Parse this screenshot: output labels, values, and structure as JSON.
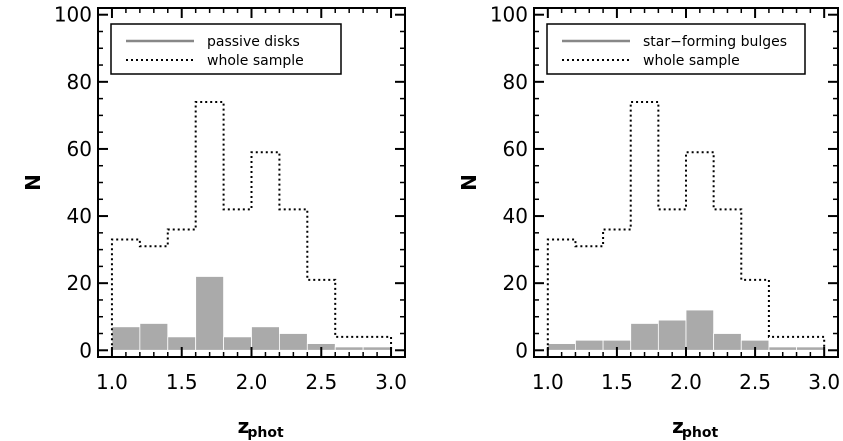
{
  "chart_data": [
    {
      "type": "bar",
      "xlabel": "z",
      "xlabel_sub": "phot",
      "ylabel": "N",
      "xlim": [
        0.9,
        3.1
      ],
      "ylim": [
        -2,
        102
      ],
      "xticks": [
        "1.0",
        "1.5",
        "2.0",
        "2.5",
        "3.0"
      ],
      "yticks": [
        "0",
        "20",
        "40",
        "60",
        "80",
        "100"
      ],
      "bin_edges": [
        1.0,
        1.2,
        1.4,
        1.6,
        1.8,
        2.0,
        2.2,
        2.4,
        2.6,
        2.8,
        3.0
      ],
      "legend_position": "top-left",
      "series": [
        {
          "name": "passive disks",
          "style": "filled",
          "color": "#aaaaaa",
          "values": [
            7,
            8,
            4,
            22,
            4,
            7,
            5,
            2,
            1,
            1
          ]
        },
        {
          "name": "whole sample",
          "style": "dotted",
          "color": "#000000",
          "values": [
            33,
            31,
            36,
            74,
            42,
            59,
            42,
            21,
            4,
            4
          ]
        }
      ]
    },
    {
      "type": "bar",
      "xlabel": "z",
      "xlabel_sub": "phot",
      "ylabel": "N",
      "xlim": [
        0.9,
        3.1
      ],
      "ylim": [
        -2,
        102
      ],
      "xticks": [
        "1.0",
        "1.5",
        "2.0",
        "2.5",
        "3.0"
      ],
      "yticks": [
        "0",
        "20",
        "40",
        "60",
        "80",
        "100"
      ],
      "bin_edges": [
        1.0,
        1.2,
        1.4,
        1.6,
        1.8,
        2.0,
        2.2,
        2.4,
        2.6,
        2.8,
        3.0
      ],
      "legend_position": "top-left",
      "series": [
        {
          "name": "star−forming bulges",
          "style": "filled",
          "color": "#aaaaaa",
          "values": [
            2,
            3,
            3,
            8,
            9,
            12,
            5,
            3,
            1,
            1
          ]
        },
        {
          "name": "whole sample",
          "style": "dotted",
          "color": "#000000",
          "values": [
            33,
            31,
            36,
            74,
            42,
            59,
            42,
            21,
            4,
            4
          ]
        }
      ]
    }
  ]
}
